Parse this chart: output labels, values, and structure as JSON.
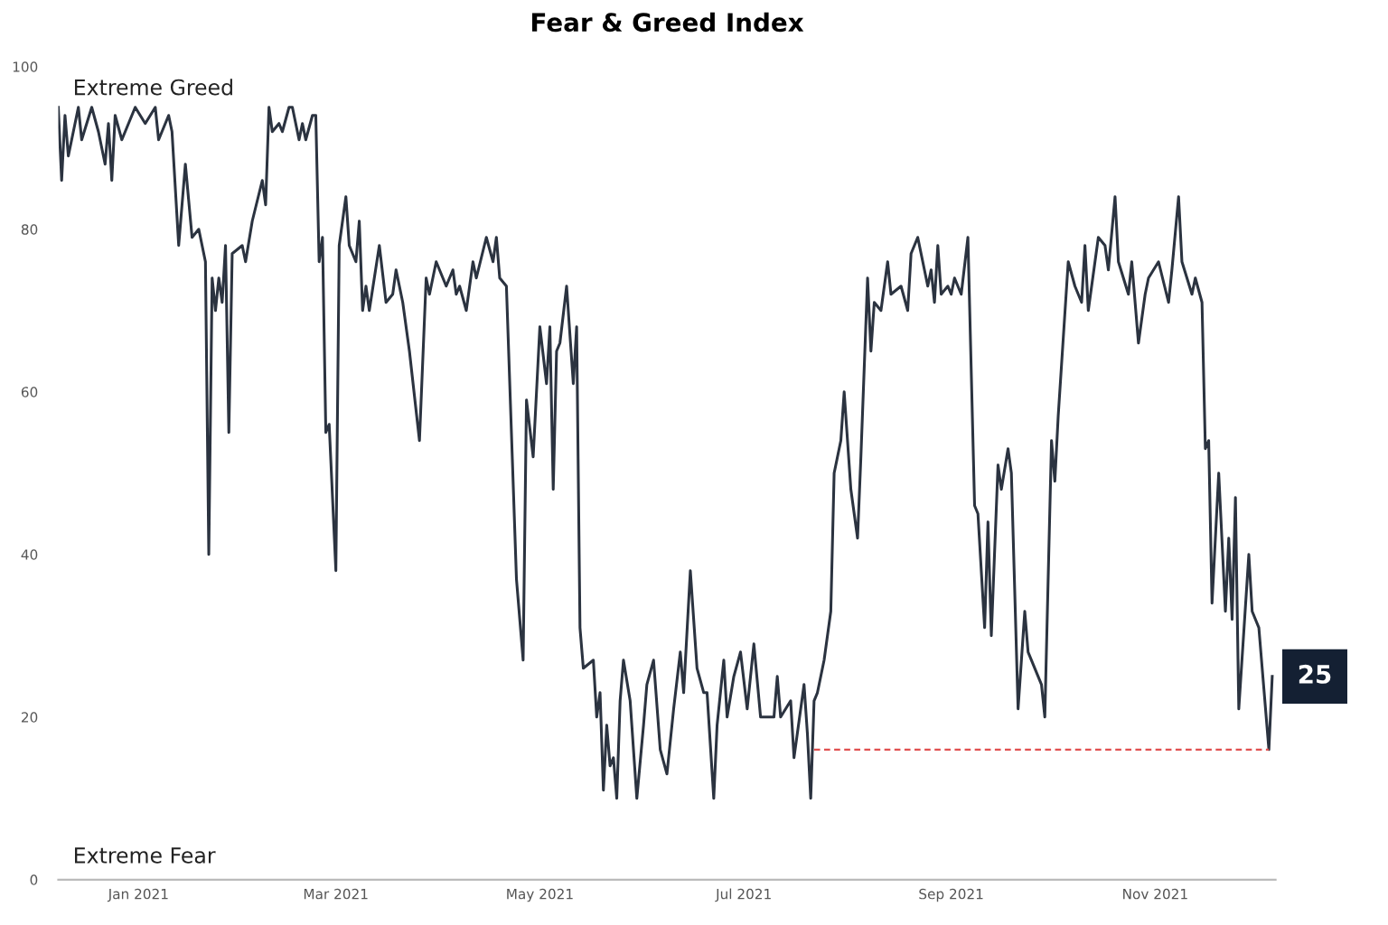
{
  "chart_data": {
    "type": "line",
    "title": "Fear & Greed Index",
    "annotations": [
      "Extreme Greed",
      "Extreme Fear",
      {
        "text": "25",
        "x": "2021-12-06",
        "y": 25
      }
    ],
    "xlim": [
      "2020-12-08",
      "2021-12-07"
    ],
    "xticks": [
      {
        "value": "2021-01-01",
        "label": "Jan 2021"
      },
      {
        "value": "2021-03-01",
        "label": "Mar 2021"
      },
      {
        "value": "2021-05-01",
        "label": "May 2021"
      },
      {
        "value": "2021-07-01",
        "label": "Jul 2021"
      },
      {
        "value": "2021-09-01",
        "label": "Sep 2021"
      },
      {
        "value": "2021-11-01",
        "label": "Nov 2021"
      }
    ],
    "ylim": [
      0,
      100
    ],
    "yticks": [
      0,
      20,
      40,
      60,
      80,
      100
    ],
    "grid": false,
    "marker": "none",
    "series": [
      {
        "color": "#2b3340",
        "line_style": "solid",
        "x": [
          "2020-12-08",
          "2020-12-09",
          "2020-12-10",
          "2020-12-11",
          "2020-12-14",
          "2020-12-15",
          "2020-12-18",
          "2020-12-20",
          "2020-12-22",
          "2020-12-23",
          "2020-12-24",
          "2020-12-25",
          "2020-12-27",
          "2020-12-31",
          "2021-01-03",
          "2021-01-06",
          "2021-01-07",
          "2021-01-10",
          "2021-01-11",
          "2021-01-13",
          "2021-01-15",
          "2021-01-17",
          "2021-01-19",
          "2021-01-21",
          "2021-01-22",
          "2021-01-23",
          "2021-01-24",
          "2021-01-25",
          "2021-01-26",
          "2021-01-27",
          "2021-01-28",
          "2021-01-29",
          "2021-02-01",
          "2021-02-02",
          "2021-02-04",
          "2021-02-07",
          "2021-02-08",
          "2021-02-09",
          "2021-02-10",
          "2021-02-12",
          "2021-02-13",
          "2021-02-15",
          "2021-02-16",
          "2021-02-18",
          "2021-02-19",
          "2021-02-20",
          "2021-02-22",
          "2021-02-23",
          "2021-02-24",
          "2021-02-25",
          "2021-02-26",
          "2021-02-27",
          "2021-03-01",
          "2021-03-02",
          "2021-03-04",
          "2021-03-05",
          "2021-03-07",
          "2021-03-08",
          "2021-03-09",
          "2021-03-10",
          "2021-03-11",
          "2021-03-14",
          "2021-03-16",
          "2021-03-18",
          "2021-03-19",
          "2021-03-21",
          "2021-03-23",
          "2021-03-26",
          "2021-03-28",
          "2021-03-29",
          "2021-03-31",
          "2021-04-02",
          "2021-04-03",
          "2021-04-05",
          "2021-04-06",
          "2021-04-07",
          "2021-04-09",
          "2021-04-11",
          "2021-04-12",
          "2021-04-15",
          "2021-04-17",
          "2021-04-18",
          "2021-04-19",
          "2021-04-21",
          "2021-04-24",
          "2021-04-26",
          "2021-04-27",
          "2021-04-29",
          "2021-05-01",
          "2021-05-03",
          "2021-05-04",
          "2021-05-05",
          "2021-05-06",
          "2021-05-07",
          "2021-05-09",
          "2021-05-11",
          "2021-05-12",
          "2021-05-13",
          "2021-05-14",
          "2021-05-17",
          "2021-05-18",
          "2021-05-19",
          "2021-05-20",
          "2021-05-21",
          "2021-05-22",
          "2021-05-23",
          "2021-05-24",
          "2021-05-25",
          "2021-05-26",
          "2021-05-28",
          "2021-05-30",
          "2021-06-01",
          "2021-06-02",
          "2021-06-04",
          "2021-06-06",
          "2021-06-08",
          "2021-06-10",
          "2021-06-12",
          "2021-06-13",
          "2021-06-15",
          "2021-06-17",
          "2021-06-19",
          "2021-06-20",
          "2021-06-22",
          "2021-06-23",
          "2021-06-25",
          "2021-06-26",
          "2021-06-28",
          "2021-06-30",
          "2021-07-02",
          "2021-07-04",
          "2021-07-06",
          "2021-07-10",
          "2021-07-11",
          "2021-07-12",
          "2021-07-15",
          "2021-07-16",
          "2021-07-19",
          "2021-07-20",
          "2021-07-21",
          "2021-07-22",
          "2021-07-23",
          "2021-07-25",
          "2021-07-27",
          "2021-07-28",
          "2021-07-30",
          "2021-07-31",
          "2021-08-02",
          "2021-08-04",
          "2021-08-05",
          "2021-08-07",
          "2021-08-08",
          "2021-08-09",
          "2021-08-11",
          "2021-08-13",
          "2021-08-14",
          "2021-08-17",
          "2021-08-19",
          "2021-08-20",
          "2021-08-22",
          "2021-08-25",
          "2021-08-26",
          "2021-08-27",
          "2021-08-28",
          "2021-08-29",
          "2021-08-31",
          "2021-09-01",
          "2021-09-02",
          "2021-09-04",
          "2021-09-06",
          "2021-09-08",
          "2021-09-09",
          "2021-09-11",
          "2021-09-12",
          "2021-09-13",
          "2021-09-15",
          "2021-09-16",
          "2021-09-18",
          "2021-09-19",
          "2021-09-21",
          "2021-09-23",
          "2021-09-24",
          "2021-09-28",
          "2021-09-29",
          "2021-10-01",
          "2021-10-02",
          "2021-10-03",
          "2021-10-06",
          "2021-10-08",
          "2021-10-10",
          "2021-10-11",
          "2021-10-12",
          "2021-10-15",
          "2021-10-17",
          "2021-10-18",
          "2021-10-20",
          "2021-10-21",
          "2021-10-24",
          "2021-10-25",
          "2021-10-27",
          "2021-10-29",
          "2021-10-30",
          "2021-11-02",
          "2021-11-05",
          "2021-11-06",
          "2021-11-08",
          "2021-11-09",
          "2021-11-12",
          "2021-11-13",
          "2021-11-15",
          "2021-11-16",
          "2021-11-17",
          "2021-11-18",
          "2021-11-20",
          "2021-11-22",
          "2021-11-23",
          "2021-11-24",
          "2021-11-25",
          "2021-11-26",
          "2021-11-29",
          "2021-11-30",
          "2021-12-02",
          "2021-12-05",
          "2021-12-06"
        ],
        "values": [
          95,
          86,
          94,
          89,
          95,
          91,
          95,
          92,
          88,
          93,
          86,
          94,
          91,
          95,
          93,
          95,
          91,
          94,
          92,
          78,
          88,
          79,
          80,
          76,
          40,
          74,
          70,
          74,
          71,
          78,
          55,
          77,
          78,
          76,
          81,
          86,
          83,
          95,
          92,
          93,
          92,
          95,
          95,
          91,
          93,
          91,
          94,
          94,
          76,
          79,
          55,
          56,
          38,
          78,
          84,
          78,
          76,
          81,
          70,
          73,
          70,
          78,
          71,
          72,
          75,
          71,
          65,
          54,
          74,
          72,
          76,
          74,
          73,
          75,
          72,
          73,
          70,
          76,
          74,
          79,
          76,
          79,
          74,
          73,
          37,
          27,
          59,
          52,
          68,
          61,
          68,
          48,
          65,
          66,
          73,
          61,
          68,
          31,
          26,
          27,
          20,
          23,
          11,
          19,
          14,
          15,
          10,
          22,
          27,
          22,
          10,
          19,
          24,
          27,
          16,
          13,
          21,
          28,
          23,
          38,
          26,
          23,
          23,
          10,
          19,
          27,
          20,
          25,
          28,
          21,
          29,
          20,
          20,
          25,
          20,
          22,
          15,
          24,
          18,
          10,
          22,
          23,
          27,
          33,
          50,
          54,
          60,
          48,
          42,
          52,
          74,
          65,
          71,
          70,
          76,
          72,
          73,
          70,
          77,
          79,
          73,
          75,
          71,
          78,
          72,
          73,
          72,
          74,
          72,
          79,
          46,
          45,
          31,
          44,
          30,
          51,
          48,
          53,
          50,
          21,
          33,
          28,
          24,
          20,
          54,
          49,
          57,
          76,
          73,
          71,
          78,
          70,
          79,
          78,
          75,
          84,
          76,
          72,
          76,
          66,
          72,
          74,
          76,
          71,
          75,
          84,
          76,
          72,
          74,
          71,
          53,
          54,
          34,
          50,
          33,
          42,
          32,
          47,
          21,
          40,
          33,
          31,
          16,
          25
        ]
      },
      {
        "color": "#e05050",
        "line_style": "dashed",
        "x": [
          "2021-07-22",
          "2021-12-05"
        ],
        "values": [
          16,
          16
        ]
      }
    ]
  }
}
